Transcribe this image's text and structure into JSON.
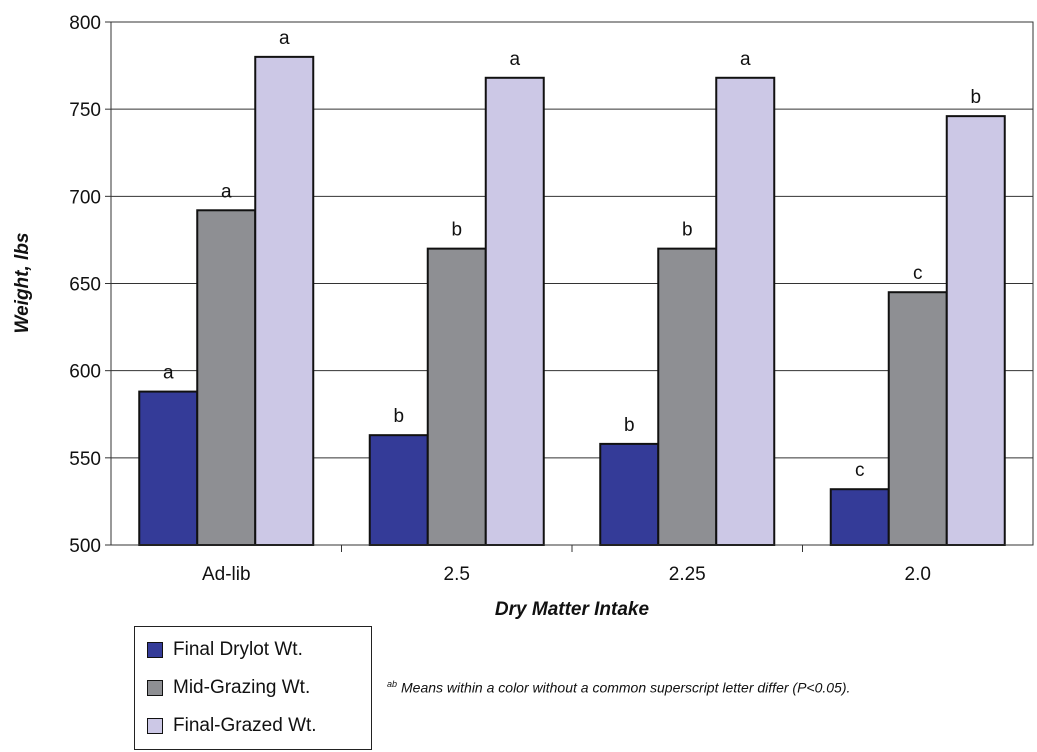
{
  "chart_data": {
    "type": "bar",
    "categories": [
      "Ad-lib",
      "2.5",
      "2.25",
      "2.0"
    ],
    "series": [
      {
        "name": "Final Drylot Wt.",
        "color": "#343b98",
        "values": [
          588,
          563,
          558,
          532
        ],
        "labels": [
          "a",
          "b",
          "b",
          "c"
        ]
      },
      {
        "name": "Mid-Grazing Wt.",
        "color": "#8e8f93",
        "values": [
          692,
          670,
          670,
          645
        ],
        "labels": [
          "a",
          "b",
          "b",
          "c"
        ]
      },
      {
        "name": "Final-Grazed Wt.",
        "color": "#ccc8e6",
        "values": [
          780,
          768,
          768,
          746
        ],
        "labels": [
          "a",
          "a",
          "a",
          "b"
        ]
      }
    ],
    "xlabel": "Dry Matter Intake",
    "ylabel": "Weight, lbs",
    "ylim": [
      500,
      800
    ],
    "yticks": [
      500,
      550,
      600,
      650,
      700,
      750,
      800
    ],
    "grid": true,
    "legend_position": "bottom-left"
  },
  "footnote": {
    "superscript": "ab",
    "text": "Means within a color without a common superscript letter differ (P<0.05)."
  }
}
